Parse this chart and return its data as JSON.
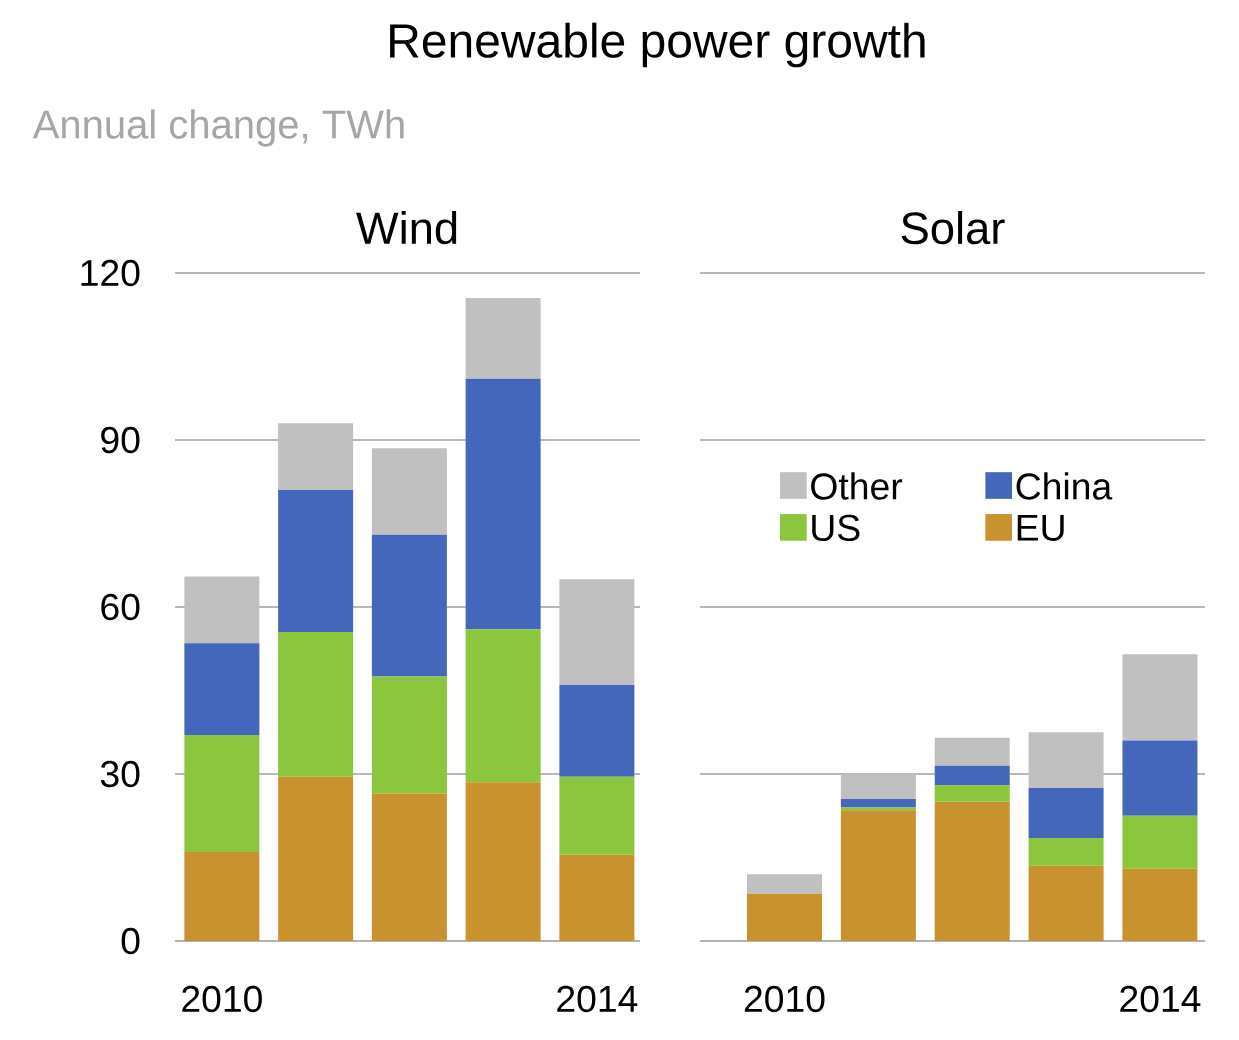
{
  "chart_data": [
    {
      "type": "bar",
      "stacked": true,
      "title": "Wind",
      "ylabel": "Annual change, TWh",
      "annotations": [
        "Renewable power growth"
      ],
      "categories": [
        "2010",
        null,
        null,
        null,
        "2014"
      ],
      "ylim": [
        0,
        120
      ],
      "yticks": [
        0,
        30,
        60,
        90,
        120
      ],
      "grid": "y",
      "legend": false,
      "series": [
        {
          "color": "#c8922f",
          "values": [
            16,
            29.5,
            26.5,
            28.5,
            15.5
          ]
        },
        {
          "color": "#8cc63f",
          "values": [
            21,
            26,
            21,
            27.5,
            14
          ]
        },
        {
          "color": "#4466bb",
          "values": [
            16.5,
            25.5,
            25.5,
            45,
            16.5
          ]
        },
        {
          "color": "#c0c0c0",
          "values": [
            12,
            12,
            15.5,
            14.5,
            19
          ]
        }
      ]
    },
    {
      "type": "bar",
      "stacked": true,
      "title": "Solar",
      "categories": [
        "2010",
        null,
        null,
        null,
        "2014"
      ],
      "ylim": [
        0,
        120
      ],
      "yticks": [
        0,
        30,
        60,
        90,
        120
      ],
      "grid": "y",
      "legend": "top",
      "tick_labels": "x",
      "series": [
        {
          "name": "EU",
          "color": "#c8922f",
          "values": [
            8.5,
            23.5,
            25,
            13.5,
            13
          ]
        },
        {
          "name": "US",
          "color": "#8cc63f",
          "values": [
            0,
            0.5,
            3,
            5,
            9.5
          ]
        },
        {
          "name": "China",
          "color": "#4466bb",
          "values": [
            0,
            1.5,
            3.5,
            9,
            13.5
          ]
        },
        {
          "name": "Other",
          "color": "#c0c0c0",
          "values": [
            3.5,
            4.5,
            5,
            10,
            15.5
          ]
        }
      ]
    }
  ]
}
